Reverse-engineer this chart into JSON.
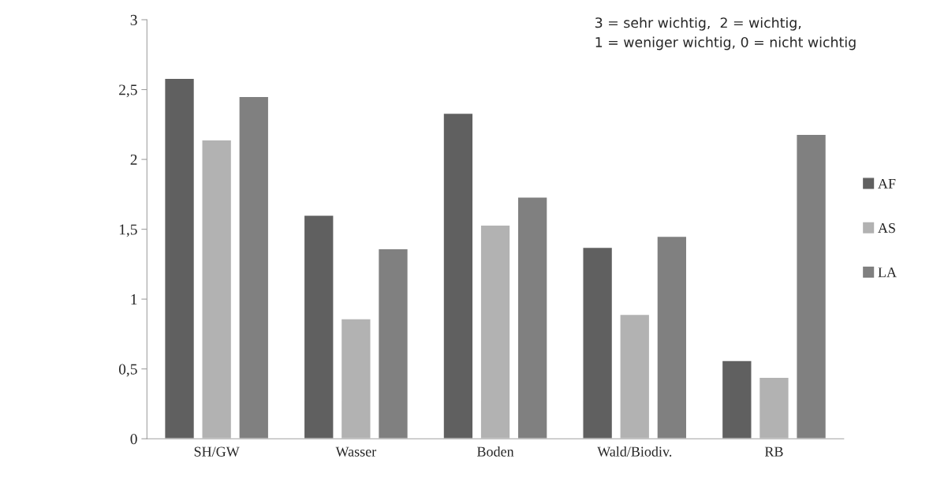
{
  "chart_data": {
    "type": "bar",
    "categories": [
      "SH/GW",
      "Wasser",
      "Boden",
      "Wald/Biodiv.",
      "RB"
    ],
    "series": [
      {
        "name": "AF",
        "color": "#606060",
        "values": [
          2.58,
          1.6,
          2.33,
          1.37,
          0.56
        ]
      },
      {
        "name": "AS",
        "color": "#b2b2b2",
        "values": [
          2.14,
          0.86,
          1.53,
          0.89,
          0.44
        ]
      },
      {
        "name": "LA",
        "color": "#808080",
        "values": [
          2.45,
          1.36,
          1.73,
          1.45,
          2.18
        ]
      }
    ],
    "ylim": [
      0,
      3
    ],
    "yticks": [
      0,
      {
        "value": 0.5,
        "label": "0,5"
      },
      1,
      {
        "value": 1.5,
        "label": "1,5"
      },
      2,
      {
        "value": 2.5,
        "label": "2,5"
      },
      3
    ],
    "grid": false,
    "legend": "right",
    "annotations": [
      "3 = sehr wichtig,  2 = wichtig,\n1 = weniger wichtig, 0 = nicht wichtig"
    ]
  }
}
